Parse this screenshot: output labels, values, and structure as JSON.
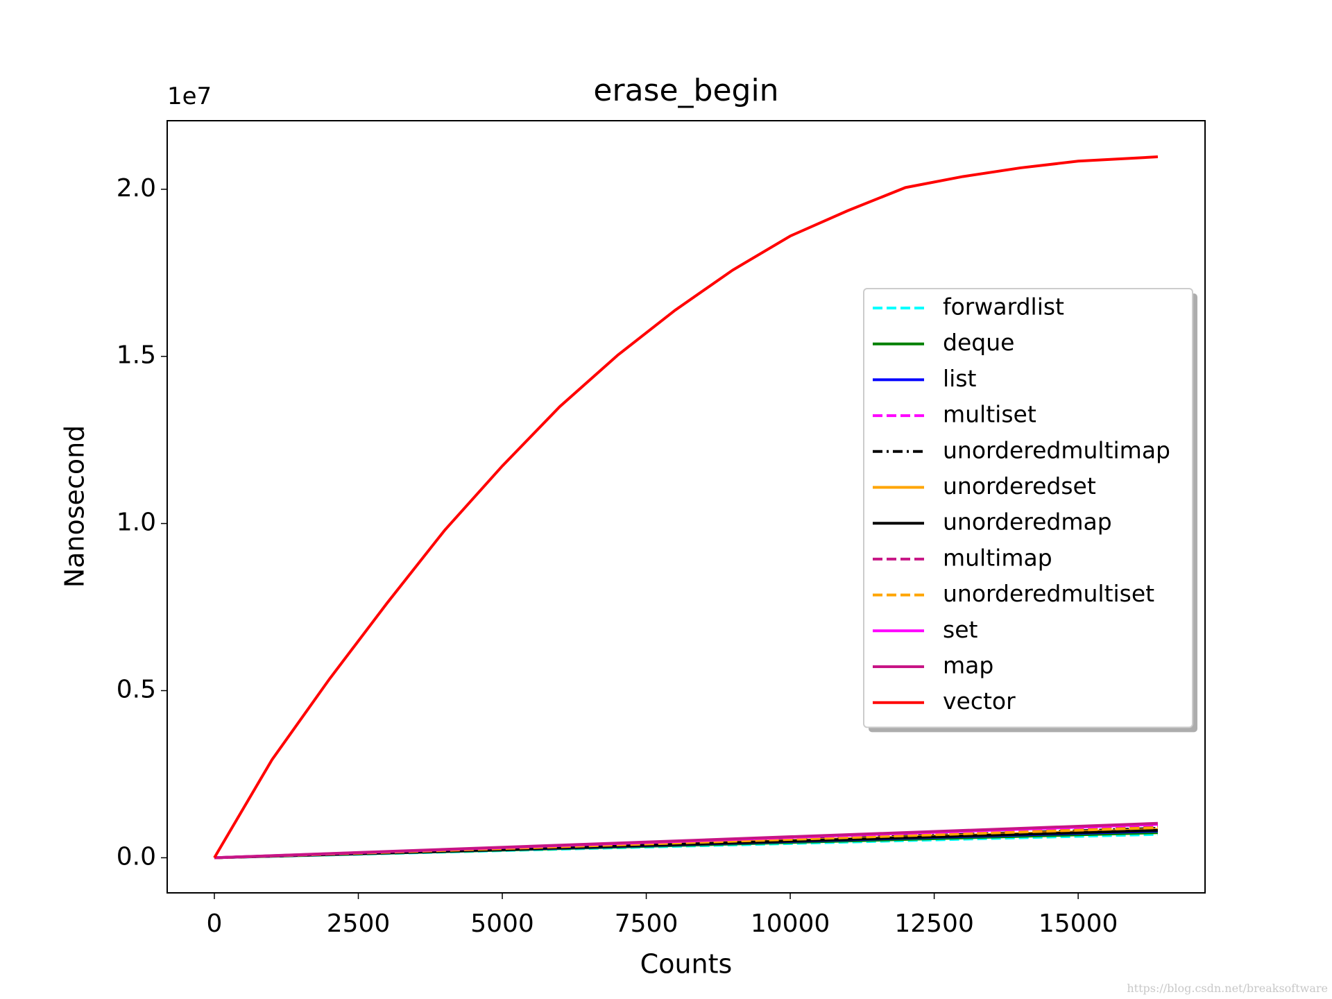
{
  "chart_data": {
    "type": "line",
    "title": "erase_begin",
    "x_label": "Counts",
    "y_label": "Nanosecond",
    "y_offset_label": "1e7",
    "watermark": "https://blog.csdn.net/breaksoftware",
    "xlim": [
      -819,
      17203
    ],
    "ylim": [
      -1050000,
      22050000
    ],
    "xticks": [
      0,
      2500,
      5000,
      7500,
      10000,
      12500,
      15000
    ],
    "yticks": [
      {
        "value": 0,
        "label": "0.0"
      },
      {
        "value": 5000000,
        "label": "0.5"
      },
      {
        "value": 10000000,
        "label": "1.0"
      },
      {
        "value": 15000000,
        "label": "1.5"
      },
      {
        "value": 20000000,
        "label": "2.0"
      }
    ],
    "legend": "right",
    "series": [
      {
        "name": "forwardlist",
        "color": "#00ffff",
        "style": "dashed",
        "x": [
          0,
          16383
        ],
        "values": [
          0,
          700000
        ]
      },
      {
        "name": "deque",
        "color": "#008000",
        "style": "solid",
        "x": [
          0,
          16383
        ],
        "values": [
          0,
          750000
        ]
      },
      {
        "name": "list",
        "color": "#0000ff",
        "style": "solid",
        "x": [
          0,
          16383
        ],
        "values": [
          0,
          800000
        ]
      },
      {
        "name": "multiset",
        "color": "#ff00ff",
        "style": "dashed",
        "x": [
          0,
          16383
        ],
        "values": [
          0,
          950000
        ]
      },
      {
        "name": "unorderedmultimap",
        "color": "#000000",
        "style": "dashdot",
        "x": [
          0,
          16383
        ],
        "values": [
          0,
          880000
        ]
      },
      {
        "name": "unorderedset",
        "color": "#ffa500",
        "style": "solid",
        "x": [
          0,
          16383
        ],
        "values": [
          0,
          850000
        ]
      },
      {
        "name": "unorderedmap",
        "color": "#000000",
        "style": "solid",
        "x": [
          0,
          16383
        ],
        "values": [
          0,
          820000
        ]
      },
      {
        "name": "multimap",
        "color": "#c71585",
        "style": "dashed",
        "x": [
          0,
          16383
        ],
        "values": [
          0,
          960000
        ]
      },
      {
        "name": "unorderedmultiset",
        "color": "#ffa500",
        "style": "dashed",
        "x": [
          0,
          16383
        ],
        "values": [
          0,
          900000
        ]
      },
      {
        "name": "set",
        "color": "#ff00ff",
        "style": "solid",
        "x": [
          0,
          16383
        ],
        "values": [
          0,
          1000000
        ]
      },
      {
        "name": "map",
        "color": "#c71585",
        "style": "solid",
        "x": [
          0,
          16383
        ],
        "values": [
          0,
          1030000
        ]
      },
      {
        "name": "vector",
        "color": "#ff0000",
        "style": "solid",
        "x": [
          0,
          1000,
          2000,
          3000,
          4000,
          5000,
          6000,
          7000,
          8000,
          9000,
          10000,
          11000,
          12000,
          13000,
          14000,
          15000,
          16383
        ],
        "values": [
          0,
          2930000,
          5350000,
          7620000,
          9800000,
          11720000,
          13500000,
          15030000,
          16380000,
          17580000,
          18600000,
          19360000,
          20050000,
          20380000,
          20640000,
          20840000,
          20970000
        ]
      }
    ]
  }
}
